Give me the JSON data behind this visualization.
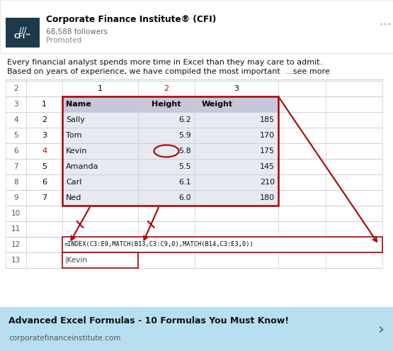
{
  "bg_color": "#ffffff",
  "header": {
    "company": "Corporate Finance Institute® (CFI)",
    "followers": "68,588 followers",
    "promoted": "Promoted",
    "logo_bg_dark": "#1b3a4b",
    "logo_bg_light": "#1e5270"
  },
  "body_text_line1": "Every financial analyst spends more time in Excel than they may care to admit.",
  "body_text_line2": "Based on years of experience, we have compiled the most important  …see more",
  "spreadsheet": {
    "col_headers": [
      "1",
      "2",
      "3"
    ],
    "col_header_colors": [
      "#000000",
      "#cc0000",
      "#000000"
    ],
    "row_data_numbers": [
      "1",
      "2",
      "3",
      "4",
      "5",
      "6",
      "7"
    ],
    "row_data_number_colors": [
      "#000000",
      "#000000",
      "#000000",
      "#cc0000",
      "#000000",
      "#000000",
      "#000000"
    ],
    "table_headers": [
      "Name",
      "Height",
      "Weight"
    ],
    "table_data": [
      [
        "Sally",
        "6.2",
        "185"
      ],
      [
        "Tom",
        "5.9",
        "170"
      ],
      [
        "Kevin",
        "5.8",
        "175"
      ],
      [
        "Amanda",
        "5.5",
        "145"
      ],
      [
        "Carl",
        "6.1",
        "210"
      ],
      [
        "Ned",
        "6.0",
        "180"
      ]
    ],
    "formula": "=INDEX(C3:E9,MATCH(B13,C3:C9,0),MATCH(B14,C3:E3,0))"
  },
  "footer": {
    "bg_color": "#b8dff0",
    "title": "Advanced Excel Formulas - 10 Formulas You Must Know!",
    "url": "corporatefinanceinstitute.com"
  },
  "border_color": "#aa0000",
  "grid_color": "#cccccc",
  "table_fill": "#e8eaf2",
  "header_fill": "#c5c8dc"
}
